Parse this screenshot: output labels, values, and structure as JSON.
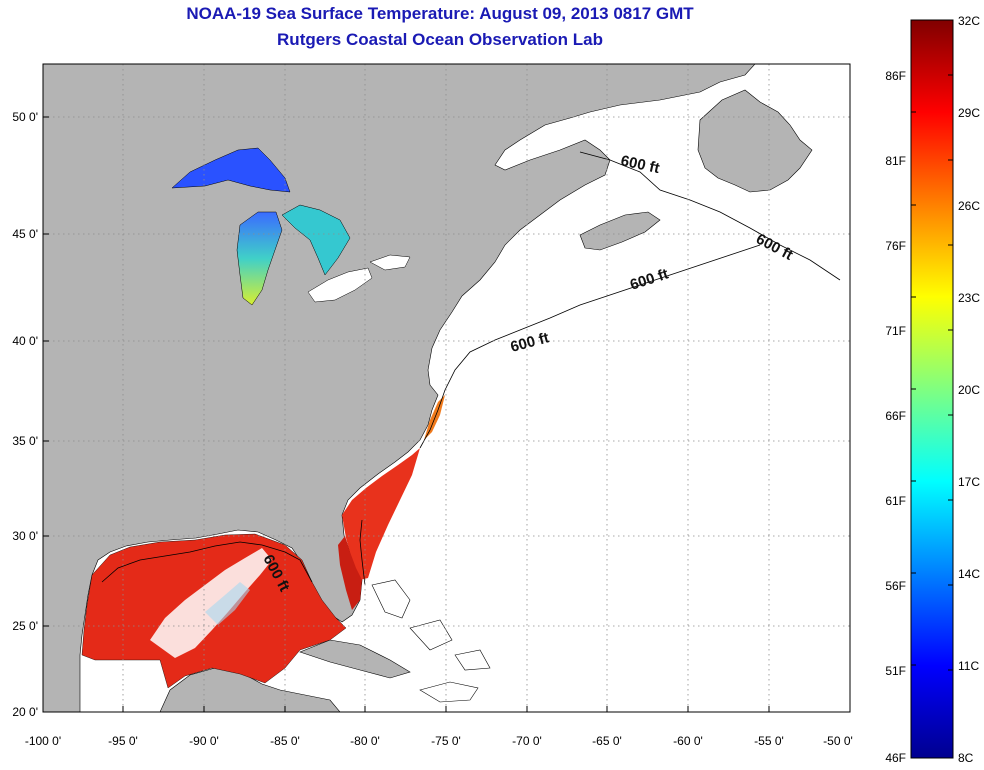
{
  "header": {
    "title": "NOAA-19 Sea Surface Temperature:  August 09, 2013 0817 GMT",
    "subtitle": "Rutgers Coastal Ocean Observation Lab"
  },
  "map": {
    "lon_labels": [
      "-100 0'",
      "-95 0'",
      "-90 0'",
      "-85 0'",
      "-80 0'",
      "-75 0'",
      "-70 0'",
      "-65 0'",
      "-60 0'",
      "-55 0'",
      "-50 0'"
    ],
    "lat_labels": [
      "20 0'",
      "25 0'",
      "30 0'",
      "35 0'",
      "40 0'",
      "45 0'",
      "50 0'"
    ],
    "contour_labels": [
      "600 ft",
      "600 ft",
      "600 ft",
      "600 ft",
      "600 ft"
    ],
    "colors": {
      "land": "#b4b4b4",
      "ocean_no_data": "#ffffff",
      "grid": "#8c8c8c"
    }
  },
  "colorbar": {
    "celsius_labels": [
      "32C",
      "29C",
      "26C",
      "23C",
      "20C",
      "17C",
      "14C",
      "11C",
      "8C"
    ],
    "fahrenheit_labels": [
      "86F",
      "81F",
      "76F",
      "71F",
      "66F",
      "61F",
      "56F",
      "51F",
      "46F"
    ],
    "range_c": [
      8,
      32
    ],
    "colors": [
      "#00008f",
      "#0000ff",
      "#0080ff",
      "#00ffff",
      "#80ff80",
      "#ffff00",
      "#ff8000",
      "#ff0000",
      "#800000"
    ]
  }
}
